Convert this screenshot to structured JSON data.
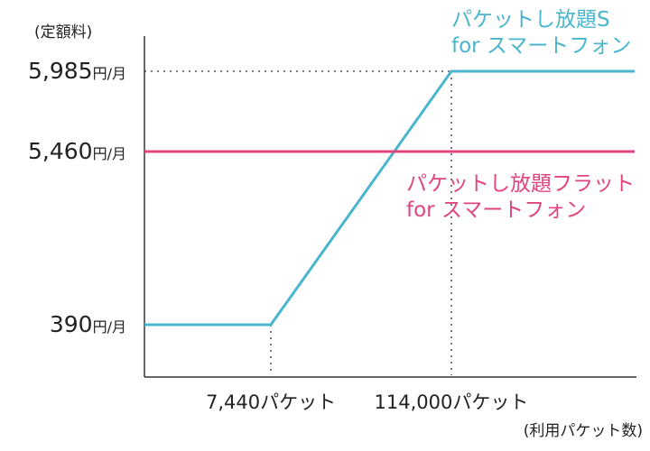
{
  "chart_data": {
    "type": "line",
    "ylabel": "(定額料)",
    "xlabel": "(利用パケット数)",
    "y_ticks": [
      {
        "value": 5985,
        "label": "5,985",
        "unit": "円/月"
      },
      {
        "value": 5460,
        "label": "5,460",
        "unit": "円/月"
      },
      {
        "value": 390,
        "label": "390",
        "unit": "円/月"
      }
    ],
    "x_ticks": [
      {
        "value": 7440,
        "label": "7,440パケット"
      },
      {
        "value": 114000,
        "label": "114,000パケット"
      }
    ],
    "series": [
      {
        "name_lines": [
          "パケットし放題S",
          "for スマートフォン"
        ],
        "color": "#4ab5cf",
        "points": [
          {
            "x": 0,
            "y": 390
          },
          {
            "x": 7440,
            "y": 390
          },
          {
            "x": 114000,
            "y": 5985
          },
          {
            "x": 150000,
            "y": 5985
          }
        ]
      },
      {
        "name_lines": [
          "パケットし放題フラット",
          "for スマートフォン"
        ],
        "color": "#e0457f",
        "points": [
          {
            "x": 0,
            "y": 5460
          },
          {
            "x": 150000,
            "y": 5460
          }
        ]
      }
    ],
    "grid": false,
    "legend": "inline"
  }
}
